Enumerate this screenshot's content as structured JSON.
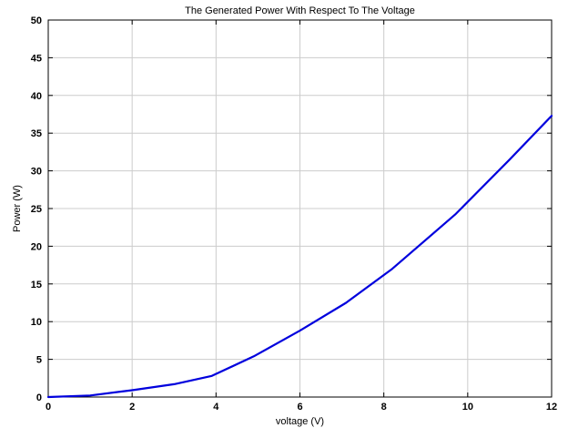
{
  "chart_data": {
    "type": "line",
    "title": "The Generated Power With Respect To The Voltage",
    "xlabel": "voltage (V)",
    "ylabel": "Power (W)",
    "xlim": [
      0,
      12
    ],
    "ylim": [
      0,
      50
    ],
    "xticks": [
      0,
      2,
      4,
      6,
      8,
      10,
      12
    ],
    "yticks": [
      0,
      5,
      10,
      15,
      20,
      25,
      30,
      35,
      40,
      45,
      50
    ],
    "grid": true,
    "series": [
      {
        "color": "#0000dd",
        "x": [
          0,
          1,
          2,
          3,
          3.9,
          4.9,
          6,
          7.1,
          8.2,
          9.7,
          11,
          12
        ],
        "y": [
          0,
          0.2,
          0.9,
          1.7,
          2.8,
          5.4,
          8.8,
          12.5,
          17,
          24.2,
          31.5,
          37.3
        ]
      }
    ]
  }
}
